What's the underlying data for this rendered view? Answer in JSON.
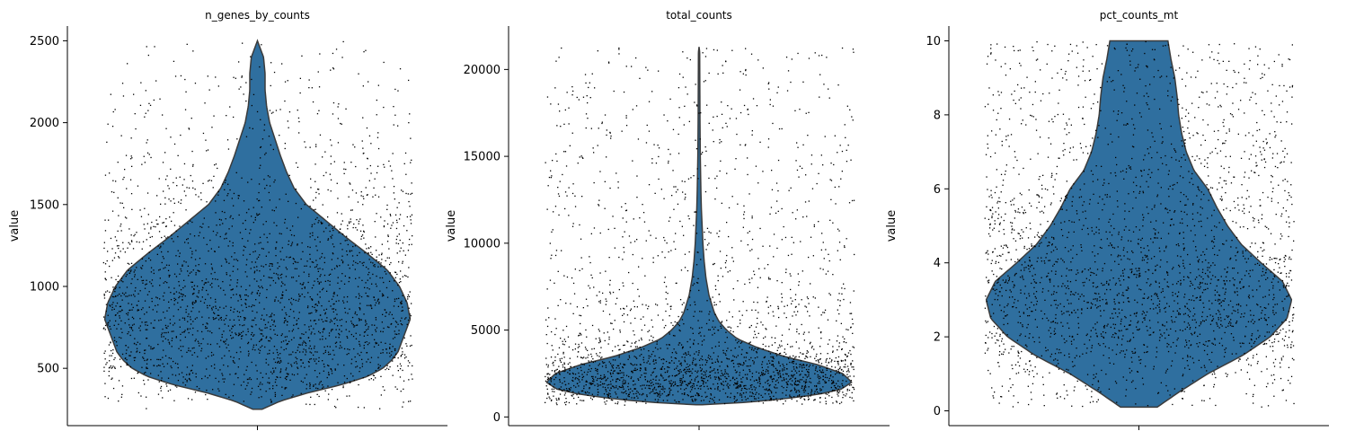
{
  "figure": {
    "panels": [
      {
        "title": "n_genes_by_counts",
        "ylabel": "value"
      },
      {
        "title": "total_counts",
        "ylabel": "value"
      },
      {
        "title": "pct_counts_mt",
        "ylabel": "value"
      }
    ]
  },
  "chart_data": [
    {
      "type": "violin",
      "title": "n_genes_by_counts",
      "xlabel": "",
      "ylabel": "value",
      "ylim": [
        150,
        2590
      ],
      "yticks": [
        500,
        1000,
        1500,
        2000,
        2500
      ],
      "grid": false,
      "color": "#2f6f9f",
      "point_color": "#000000",
      "point_count": 2600,
      "range": [
        250,
        2500
      ],
      "density": [
        [
          250,
          0.03
        ],
        [
          300,
          0.15
        ],
        [
          350,
          0.33
        ],
        [
          400,
          0.55
        ],
        [
          450,
          0.72
        ],
        [
          500,
          0.82
        ],
        [
          550,
          0.88
        ],
        [
          600,
          0.92
        ],
        [
          700,
          0.96
        ],
        [
          800,
          1.0
        ],
        [
          900,
          0.98
        ],
        [
          1000,
          0.93
        ],
        [
          1100,
          0.85
        ],
        [
          1200,
          0.72
        ],
        [
          1300,
          0.58
        ],
        [
          1400,
          0.45
        ],
        [
          1500,
          0.32
        ],
        [
          1600,
          0.24
        ],
        [
          1700,
          0.19
        ],
        [
          1800,
          0.15
        ],
        [
          1900,
          0.115
        ],
        [
          2000,
          0.08
        ],
        [
          2100,
          0.06
        ],
        [
          2200,
          0.05
        ],
        [
          2300,
          0.05
        ],
        [
          2400,
          0.04
        ],
        [
          2500,
          0.0
        ]
      ]
    },
    {
      "type": "violin",
      "title": "total_counts",
      "xlabel": "",
      "ylabel": "value",
      "ylim": [
        -500,
        22500
      ],
      "yticks": [
        0,
        5000,
        10000,
        15000,
        20000
      ],
      "grid": false,
      "color": "#2f6f9f",
      "point_color": "#000000",
      "point_count": 2600,
      "range": [
        700,
        21300
      ],
      "density": [
        [
          700,
          0.02
        ],
        [
          800,
          0.25
        ],
        [
          1000,
          0.52
        ],
        [
          1300,
          0.78
        ],
        [
          1600,
          0.93
        ],
        [
          2000,
          1.0
        ],
        [
          2500,
          0.94
        ],
        [
          3000,
          0.78
        ],
        [
          3500,
          0.55
        ],
        [
          4000,
          0.38
        ],
        [
          4500,
          0.25
        ],
        [
          5000,
          0.18
        ],
        [
          5500,
          0.13
        ],
        [
          6000,
          0.1
        ],
        [
          7000,
          0.065
        ],
        [
          8000,
          0.045
        ],
        [
          9000,
          0.033
        ],
        [
          10000,
          0.025
        ],
        [
          11000,
          0.02
        ],
        [
          12000,
          0.015
        ],
        [
          13000,
          0.012
        ],
        [
          14000,
          0.01
        ],
        [
          15000,
          0.008
        ],
        [
          17000,
          0.006
        ],
        [
          19000,
          0.005
        ],
        [
          21000,
          0.004
        ],
        [
          21300,
          0.0
        ]
      ]
    },
    {
      "type": "violin",
      "title": "pct_counts_mt",
      "xlabel": "",
      "ylabel": "value",
      "ylim": [
        -0.4,
        10.4
      ],
      "yticks": [
        0,
        2,
        4,
        6,
        8,
        10
      ],
      "grid": false,
      "color": "#2f6f9f",
      "point_color": "#000000",
      "point_count": 2600,
      "range": [
        0.1,
        10
      ],
      "density": [
        [
          0.1,
          0.12
        ],
        [
          0.5,
          0.26
        ],
        [
          1.0,
          0.45
        ],
        [
          1.5,
          0.68
        ],
        [
          2.0,
          0.86
        ],
        [
          2.5,
          0.97
        ],
        [
          3.0,
          1.0
        ],
        [
          3.5,
          0.94
        ],
        [
          4.0,
          0.8
        ],
        [
          4.5,
          0.67
        ],
        [
          5.0,
          0.58
        ],
        [
          5.5,
          0.51
        ],
        [
          6.0,
          0.45
        ],
        [
          6.5,
          0.36
        ],
        [
          7.0,
          0.31
        ],
        [
          7.5,
          0.28
        ],
        [
          8.0,
          0.26
        ],
        [
          8.5,
          0.25
        ],
        [
          9.0,
          0.235
        ],
        [
          9.5,
          0.21
        ],
        [
          10.0,
          0.19
        ]
      ]
    }
  ]
}
